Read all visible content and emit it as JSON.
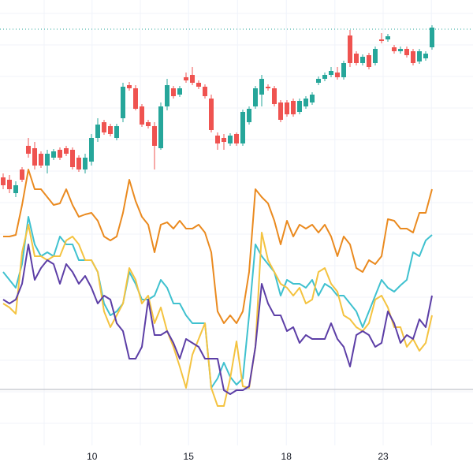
{
  "chart_data": {
    "type": "candlestick",
    "x": [
      0,
      1,
      2,
      3,
      4,
      5,
      6,
      7,
      8,
      9,
      10,
      11,
      12,
      13,
      14,
      15,
      16,
      17,
      18,
      19,
      20,
      21,
      22,
      23,
      24,
      25,
      26,
      27,
      28,
      29,
      30,
      31,
      32,
      33,
      34,
      35,
      36,
      37,
      38,
      39,
      40,
      41,
      42,
      43,
      44,
      45,
      46,
      47,
      48,
      49,
      50,
      51,
      52,
      53,
      54,
      55,
      56,
      57,
      58,
      59,
      60,
      61,
      62,
      63,
      64,
      65,
      66,
      67,
      68
    ],
    "xlim": [
      -0.5,
      74.5
    ],
    "xticks": [
      {
        "value": 14.1,
        "label": "10"
      },
      {
        "value": 29.4,
        "label": "15"
      },
      {
        "value": 44.9,
        "label": "18"
      },
      {
        "value": 60.25,
        "label": "23"
      }
    ],
    "xgrid": [
      6.5,
      21.75,
      37.15,
      52.6,
      67.9
    ],
    "ylim": [
      0,
      565
    ],
    "ygrid": [
      548,
      508,
      468,
      428,
      388,
      348,
      308,
      268,
      228,
      188,
      148,
      108,
      68,
      28
    ],
    "grid": true,
    "up_color": "#26a69a",
    "down_color": "#ef5350",
    "open": [
      340,
      337,
      320,
      350,
      380,
      377,
      370,
      355,
      365,
      375,
      377,
      375,
      365,
      350,
      360,
      390,
      410,
      405,
      390,
      415,
      457,
      453,
      430,
      410,
      405,
      377,
      430,
      453,
      445,
      467,
      470,
      460,
      455,
      440,
      393,
      390,
      383,
      395,
      383,
      410,
      430,
      445,
      455,
      453,
      435,
      435,
      437,
      423,
      430,
      435,
      460,
      465,
      470,
      473,
      467,
      520,
      497,
      485,
      495,
      485,
      515,
      515,
      505,
      500,
      503,
      500,
      487,
      491,
      505
    ],
    "high": [
      345,
      343,
      335,
      353,
      390,
      385,
      373,
      375,
      376,
      378,
      380,
      378,
      368,
      370,
      395,
      415,
      413,
      408,
      408,
      460,
      461,
      457,
      433,
      413,
      410,
      435,
      465,
      456,
      456,
      473,
      480,
      463,
      458,
      445,
      397,
      395,
      396,
      397,
      426,
      430,
      456,
      470,
      458,
      456,
      438,
      438,
      440,
      440,
      443,
      448,
      468,
      473,
      480,
      480,
      488,
      527,
      500,
      496,
      498,
      506,
      523,
      522,
      508,
      506,
      506,
      503,
      503,
      500,
      533
    ],
    "low": [
      325,
      320,
      315,
      334,
      365,
      350,
      352,
      345,
      362,
      362,
      367,
      350,
      347,
      345,
      355,
      385,
      394,
      392,
      387,
      410,
      450,
      425,
      404,
      402,
      350,
      375,
      425,
      440,
      442,
      460,
      457,
      452,
      440,
      397,
      375,
      375,
      380,
      380,
      380,
      407,
      427,
      430,
      450,
      430,
      410,
      417,
      417,
      420,
      427,
      432,
      457,
      462,
      467,
      464,
      464,
      480,
      482,
      482,
      477,
      482,
      510,
      512,
      497,
      497,
      492,
      482,
      484,
      488,
      502
    ],
    "close": [
      330,
      325,
      330,
      337,
      370,
      355,
      355,
      370,
      373,
      365,
      370,
      353,
      350,
      365,
      390,
      407,
      397,
      395,
      405,
      455,
      453,
      427,
      407,
      405,
      380,
      430,
      457,
      443,
      453,
      463,
      460,
      455,
      443,
      400,
      383,
      385,
      393,
      383,
      423,
      427,
      453,
      465,
      453,
      433,
      413,
      420,
      420,
      437,
      440,
      445,
      465,
      470,
      475,
      467,
      485,
      485,
      485,
      493,
      480,
      503,
      513,
      519,
      500,
      503,
      495,
      485,
      500,
      497,
      530
    ],
    "lines": [
      {
        "color": "#ea8a1f",
        "values": [
          265,
          265,
          267,
          305,
          350,
          325,
          325,
          315,
          305,
          307,
          325,
          305,
          290,
          293,
          295,
          285,
          265,
          260,
          265,
          295,
          337,
          310,
          290,
          280,
          245,
          280,
          283,
          275,
          285,
          275,
          275,
          280,
          270,
          245,
          170,
          155,
          165,
          155,
          170,
          220,
          325,
          315,
          307,
          285,
          255,
          285,
          265,
          280,
          275,
          280,
          270,
          280,
          265,
          240,
          265,
          255,
          225,
          220,
          235,
          230,
          240,
          287,
          285,
          275,
          275,
          270,
          295,
          295,
          325
        ]
      },
      {
        "color": "#3fc1cf",
        "values": [
          220,
          210,
          200,
          230,
          290,
          255,
          240,
          245,
          240,
          265,
          255,
          255,
          235,
          235,
          235,
          220,
          180,
          165,
          170,
          180,
          220,
          205,
          185,
          185,
          190,
          210,
          200,
          180,
          180,
          165,
          155,
          155,
          155,
          73,
          85,
          105,
          87,
          77,
          85,
          165,
          255,
          240,
          230,
          220,
          190,
          210,
          205,
          205,
          200,
          210,
          190,
          205,
          200,
          190,
          190,
          180,
          170,
          150,
          170,
          190,
          210,
          200,
          195,
          203,
          210,
          245,
          240,
          260,
          267
        ]
      },
      {
        "color": "#f4c340",
        "values": [
          180,
          175,
          167,
          245,
          280,
          240,
          240,
          235,
          240,
          240,
          260,
          265,
          255,
          235,
          235,
          220,
          170,
          150,
          165,
          180,
          225,
          210,
          180,
          190,
          155,
          175,
          145,
          125,
          100,
          73,
          115,
          135,
          155,
          73,
          50,
          50,
          85,
          132,
          75,
          73,
          125,
          270,
          235,
          220,
          205,
          200,
          190,
          200,
          180,
          185,
          220,
          225,
          205,
          195,
          165,
          160,
          150,
          145,
          155,
          185,
          190,
          175,
          150,
          150,
          125,
          135,
          120,
          130,
          165
        ]
      },
      {
        "color": "#5c3ea6",
        "values": [
          185,
          180,
          185,
          205,
          255,
          210,
          225,
          235,
          230,
          205,
          230,
          220,
          205,
          215,
          200,
          180,
          190,
          185,
          155,
          145,
          110,
          110,
          125,
          185,
          140,
          140,
          145,
          130,
          110,
          135,
          130,
          125,
          110,
          110,
          110,
          70,
          65,
          70,
          70,
          75,
          125,
          205,
          180,
          165,
          165,
          145,
          150,
          130,
          140,
          135,
          135,
          135,
          155,
          135,
          125,
          100,
          140,
          145,
          140,
          125,
          130,
          170,
          155,
          130,
          140,
          135,
          160,
          150,
          190
        ]
      }
    ],
    "baseline": 71,
    "baseline_color": "#b2b5be",
    "price_line": 528
  }
}
